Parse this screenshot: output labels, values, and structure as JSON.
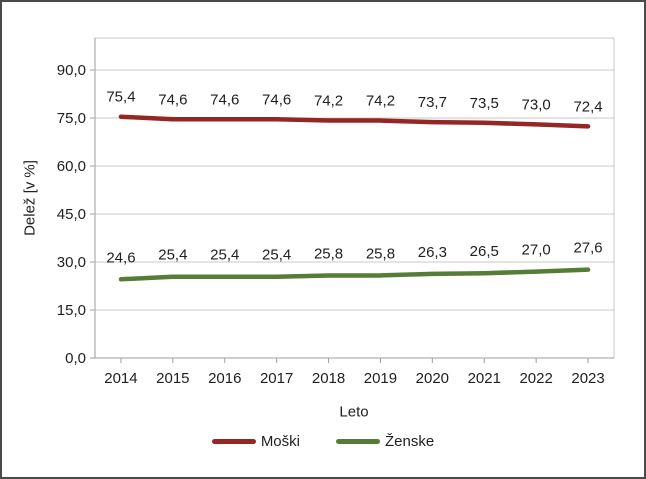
{
  "figure": {
    "background": "#FFFFFF",
    "border_color": "#4A4A4A"
  },
  "chart_data": {
    "type": "line",
    "title": "",
    "xlabel": "Leto",
    "ylabel": "Delež [v %]",
    "categories": [
      "2014",
      "2015",
      "2016",
      "2017",
      "2018",
      "2019",
      "2020",
      "2021",
      "2022",
      "2023"
    ],
    "series": [
      {
        "name": "Moški",
        "color": "#942723",
        "values": [
          75.4,
          74.6,
          74.6,
          74.6,
          74.2,
          74.2,
          73.7,
          73.5,
          73.0,
          72.4
        ],
        "labels": [
          "75,4",
          "74,6",
          "74,6",
          "74,6",
          "74,2",
          "74,2",
          "73,7",
          "73,5",
          "73,0",
          "72,4"
        ]
      },
      {
        "name": "Ženske",
        "color": "#567D35",
        "values": [
          24.6,
          25.4,
          25.4,
          25.4,
          25.8,
          25.8,
          26.3,
          26.5,
          27.0,
          27.6
        ],
        "labels": [
          "24,6",
          "25,4",
          "25,4",
          "25,4",
          "25,8",
          "25,8",
          "26,3",
          "26,5",
          "27,0",
          "27,6"
        ]
      }
    ],
    "ylim": [
      0,
      100
    ],
    "yticks": [
      0,
      15,
      30,
      45,
      60,
      75,
      90
    ],
    "ytick_labels": [
      "0,0",
      "15,0",
      "30,0",
      "45,0",
      "60,0",
      "75,0",
      "90,0"
    ],
    "grid": true,
    "legend_position": "bottom",
    "colors": {
      "gridline": "#CACACA",
      "axis": "#9E9E9E",
      "plot_border": "#C9C9C9",
      "text": "#1F1F1F"
    }
  }
}
